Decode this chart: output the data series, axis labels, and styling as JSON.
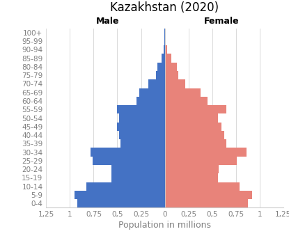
{
  "title": "Kazakhstan (2020)",
  "xlabel": "Population in millions",
  "male_label": "Male",
  "female_label": "Female",
  "age_groups": [
    "0-4",
    "5-9",
    "10-14",
    "15-19",
    "20-24",
    "25-29",
    "30-34",
    "35-39",
    "40-44",
    "45-49",
    "50-54",
    "55-59",
    "60-64",
    "65-69",
    "70-74",
    "75-79",
    "80-84",
    "85-89",
    "90-94",
    "95-99",
    "100+"
  ],
  "male_values": [
    0.92,
    0.95,
    0.83,
    0.56,
    0.56,
    0.76,
    0.78,
    0.47,
    0.48,
    0.5,
    0.48,
    0.5,
    0.3,
    0.27,
    0.17,
    0.09,
    0.08,
    0.03,
    0.01,
    0.003,
    0.001
  ],
  "female_values": [
    0.88,
    0.92,
    0.79,
    0.56,
    0.57,
    0.76,
    0.86,
    0.65,
    0.63,
    0.6,
    0.56,
    0.65,
    0.45,
    0.38,
    0.22,
    0.14,
    0.13,
    0.07,
    0.025,
    0.004,
    0.002
  ],
  "male_color": "#4472C4",
  "female_color": "#E8837A",
  "background_color": "#FFFFFF",
  "xlim": 1.25,
  "title_fontsize": 12,
  "label_fontsize": 9,
  "tick_fontsize": 7.5,
  "xtick_values": [
    -1.25,
    -1.0,
    -0.75,
    -0.5,
    -0.25,
    0,
    0.25,
    0.5,
    0.75,
    1.0,
    1.25
  ],
  "xtick_labels": [
    "1,25",
    "1",
    "0,75",
    "0,5",
    "0,25",
    "0",
    "0,25",
    "0,5",
    "0,75",
    "1",
    "1,25"
  ]
}
